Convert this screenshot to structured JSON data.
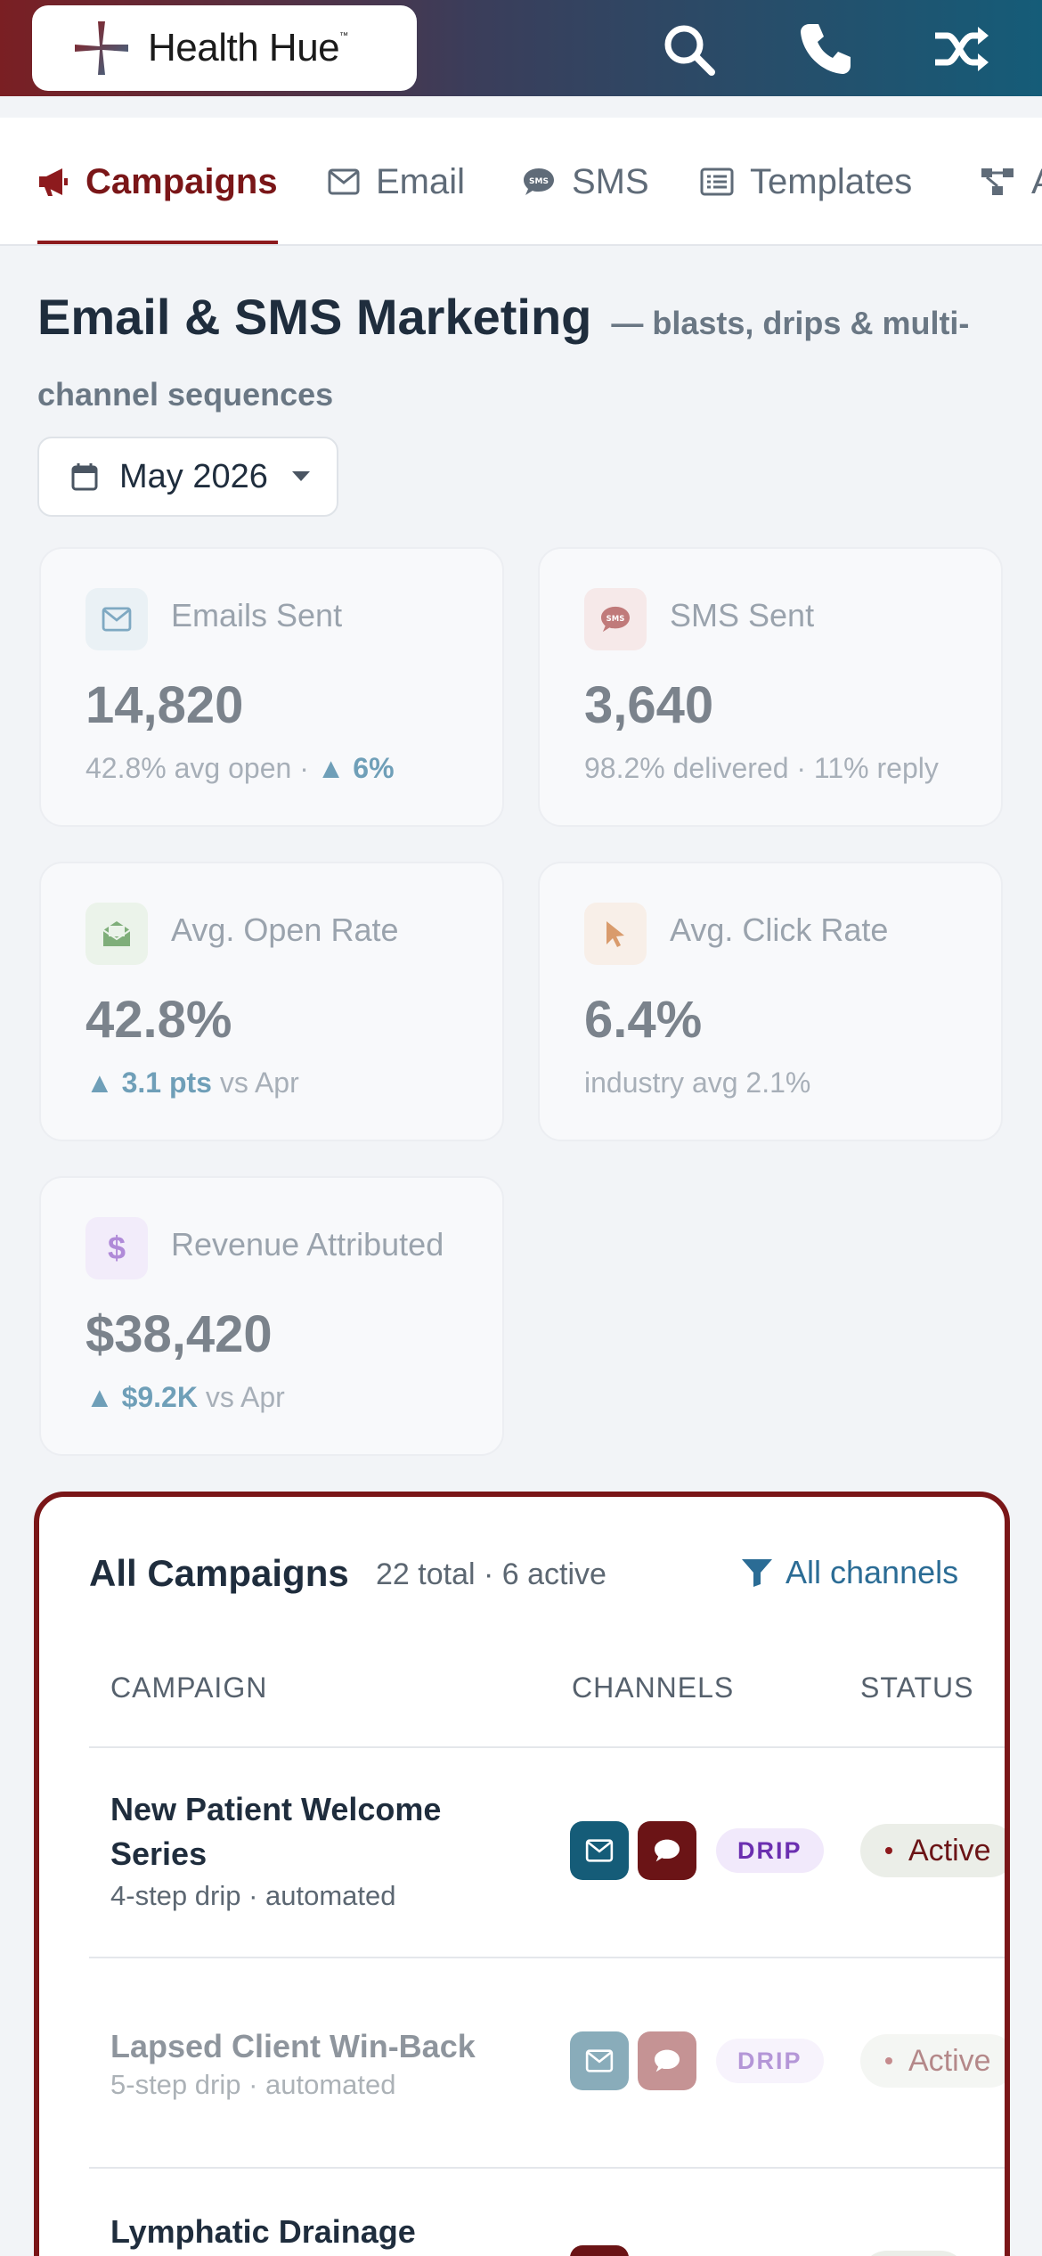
{
  "header": {
    "brand": "Health Hue",
    "brand_mark": "™",
    "icons": [
      "search-icon",
      "phone-icon",
      "shuffle-icon"
    ]
  },
  "tabs": [
    {
      "label": "Campaigns",
      "icon": "megaphone-icon",
      "active": true
    },
    {
      "label": "Email",
      "icon": "envelope-icon",
      "active": false
    },
    {
      "label": "SMS",
      "icon": "sms-bubble-icon",
      "active": false
    },
    {
      "label": "Templates",
      "icon": "list-icon",
      "active": false
    },
    {
      "label": "Automations",
      "icon": "flow-icon",
      "active": false
    }
  ],
  "page": {
    "title": "Email & SMS Marketing",
    "subtitle": "— blasts, drips & multi-channel sequences",
    "month": "May 2026"
  },
  "stats": [
    {
      "label": "Emails Sent",
      "value": "14,820",
      "sub": "42.8% avg open · ",
      "delta": "▲ 6%",
      "after": "",
      "icon": "envelope-icon",
      "color": "#7fa9c2"
    },
    {
      "label": "SMS Sent",
      "value": "3,640",
      "sub": "98.2% delivered · 11% reply",
      "delta": "",
      "after": "",
      "icon": "sms-bubble-icon",
      "color": "#c07a7a"
    },
    {
      "label": "Avg. Open Rate",
      "value": "42.8%",
      "sub": "",
      "delta": "▲ 3.1 pts",
      "after": " vs Apr",
      "icon": "open-envelope-icon",
      "color": "#7fae7a"
    },
    {
      "label": "Avg. Click Rate",
      "value": "6.4%",
      "sub": "industry avg 2.1%",
      "delta": "",
      "after": "",
      "icon": "cursor-icon",
      "color": "#d99b6c"
    },
    {
      "label": "Revenue Attributed",
      "value": "$38,420",
      "sub": "",
      "delta": "▲ $9.2K",
      "after": " vs Apr",
      "icon": "dollar-icon",
      "color": "#b08ad8"
    }
  ],
  "campaigns": {
    "title": "All Campaigns",
    "meta": "22 total · 6 active",
    "filter": "All channels",
    "columns": [
      "CAMPAIGN",
      "CHANNELS",
      "STATUS"
    ],
    "rows": [
      {
        "name": "New Patient Welcome Series",
        "sub": "4-step drip · automated",
        "type": "DRIP",
        "status": "Active"
      },
      {
        "name": "Lapsed Client Win-Back",
        "sub": "5-step drip · automated",
        "type": "DRIP",
        "status": "Active"
      },
      {
        "name": "Lymphatic Drainage",
        "sub": "",
        "type": "",
        "status": ""
      }
    ]
  }
}
